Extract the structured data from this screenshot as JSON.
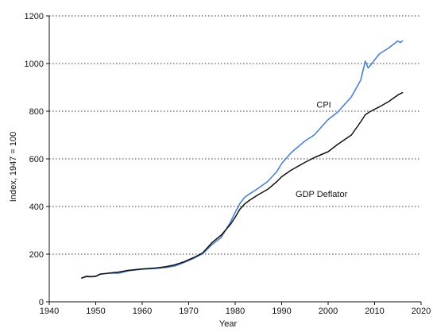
{
  "chart_data": {
    "type": "line",
    "title": "",
    "xlabel": "Year",
    "ylabel": "Index, 1947 = 100",
    "xlim": [
      1940,
      2020
    ],
    "ylim": [
      0,
      1200
    ],
    "xticks": [
      1940,
      1950,
      1960,
      1970,
      1980,
      1990,
      2000,
      2010,
      2020
    ],
    "yticks": [
      0,
      200,
      400,
      600,
      800,
      1000,
      1200
    ],
    "grid": "horizontal-dotted",
    "legend": "none",
    "series": [
      {
        "name": "CPI",
        "color": "#4a7fd4",
        "x": [
          1947,
          1948,
          1949,
          1950,
          1951,
          1953,
          1955,
          1957,
          1960,
          1963,
          1965,
          1967,
          1969,
          1971,
          1973,
          1975,
          1977,
          1979,
          1980,
          1981,
          1982,
          1983,
          1985,
          1987,
          1989,
          1990,
          1992,
          1995,
          1997,
          2000,
          2002,
          2005,
          2007,
          2008,
          2008.6,
          2009,
          2011,
          2013,
          2015,
          2015.5,
          2016
        ],
        "y": [
          100,
          108,
          106,
          108,
          117,
          120,
          120,
          130,
          137,
          140,
          144,
          150,
          165,
          182,
          202,
          240,
          270,
          335,
          375,
          412,
          438,
          452,
          477,
          505,
          548,
          580,
          625,
          675,
          700,
          765,
          795,
          860,
          930,
          1010,
          982,
          990,
          1040,
          1065,
          1095,
          1088,
          1095
        ]
      },
      {
        "name": "GDP Deflator",
        "color": "#111111",
        "x": [
          1947,
          1948,
          1949,
          1950,
          1951,
          1953,
          1955,
          1957,
          1960,
          1963,
          1965,
          1967,
          1969,
          1971,
          1973,
          1975,
          1977,
          1979,
          1980,
          1981,
          1982,
          1983,
          1985,
          1987,
          1989,
          1990,
          1992,
          1995,
          1997,
          2000,
          2002,
          2005,
          2007,
          2008,
          2009,
          2011,
          2013,
          2015,
          2016
        ],
        "y": [
          100,
          106,
          105,
          107,
          116,
          121,
          125,
          132,
          138,
          142,
          147,
          155,
          168,
          185,
          205,
          248,
          280,
          325,
          355,
          388,
          410,
          425,
          450,
          472,
          505,
          525,
          552,
          585,
          605,
          630,
          660,
          700,
          755,
          785,
          798,
          818,
          840,
          868,
          878
        ]
      }
    ],
    "annotations": [
      {
        "text": "CPI",
        "x": 1997.5,
        "y": 815
      },
      {
        "text": "GDP Deflator",
        "x": 1993,
        "y": 440
      }
    ]
  }
}
